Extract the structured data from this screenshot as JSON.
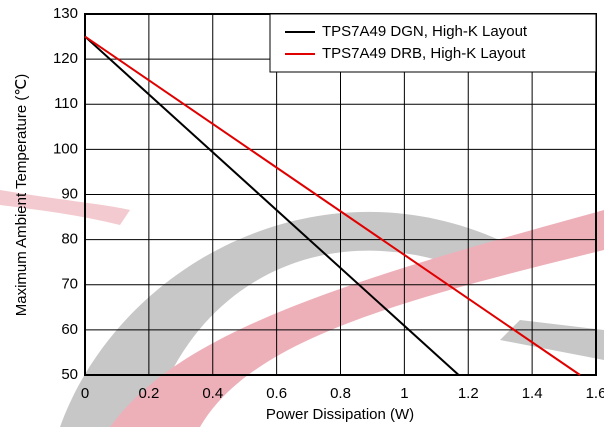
{
  "chart_data": {
    "type": "line",
    "x_label": "Power Dissipation (W)",
    "y_label": "Maximum Ambient Temperature (℃)",
    "series": [
      {
        "name": "TPS7A49 DGN, High-K Layout",
        "color": "#000000",
        "x": [
          0,
          1.17
        ],
        "values": [
          125,
          50
        ]
      },
      {
        "name": "TPS7A49 DRB, High-K Layout",
        "color": "#e00000",
        "x": [
          0,
          1.55
        ],
        "values": [
          125,
          50
        ]
      }
    ],
    "xlim": [
      0,
      1.6
    ],
    "xticks": [
      0,
      0.2,
      0.4,
      0.6,
      0.8,
      1,
      1.2,
      1.4,
      1.6
    ],
    "ylim": [
      50,
      130
    ],
    "yticks": [
      50,
      60,
      70,
      80,
      90,
      100,
      110,
      120,
      130
    ],
    "grid": true,
    "legend": "top-right"
  }
}
